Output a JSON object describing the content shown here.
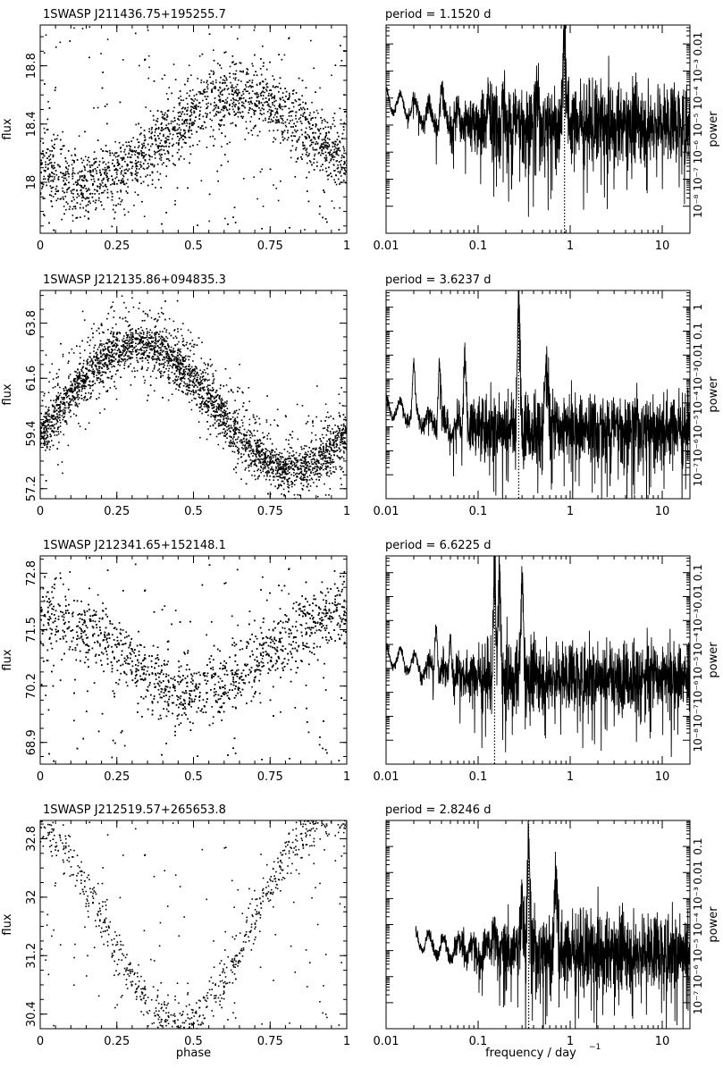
{
  "chart_data": [
    {
      "type": "scatter",
      "title": "1SWASP J211436.75+195255.7",
      "xlabel": "",
      "ylabel": "flux",
      "xlim": [
        0,
        1
      ],
      "ylim": [
        17.65,
        19.08
      ],
      "x_ticks": [
        "0",
        "0.25",
        "0.5",
        "0.75",
        "1"
      ],
      "y_ticks": [
        "18",
        "18.4",
        "18.8"
      ],
      "y_tick_values": [
        18.0,
        18.4,
        18.8
      ],
      "grid": false,
      "light_curve": {
        "n_points": 3200,
        "mean_flux": 18.3,
        "amplitude": 0.3,
        "minimum_phase": 0.15,
        "scatter": 0.16,
        "profile": "smooth rise from minimum near phase 0.15 to maximum near phase 0.65"
      }
    },
    {
      "type": "line",
      "title": "period =    1.1520  d",
      "xlabel": "",
      "ylabel": "power",
      "xscale": "log",
      "yscale": "log",
      "xlim": [
        0.01,
        20
      ],
      "ylim": [
        1e-09,
        0.05
      ],
      "x_ticks": [
        "0.01",
        "0.1",
        "1",
        "10"
      ],
      "y_ticks": [
        "10⁻⁸",
        "10⁻⁷",
        "10⁻⁶",
        "10⁻⁵",
        "10⁻⁴",
        "10⁻³",
        "0.01"
      ],
      "y_tick_values": [
        1e-08,
        1e-07,
        1e-06,
        1e-05,
        0.0001,
        0.001,
        0.01
      ],
      "period_marker_frequency": 0.868,
      "spectrum": {
        "f_start": 0.01,
        "base_level_log10": -4.9,
        "peaks": [
          {
            "frequency": 0.868,
            "log10_power": -1.5
          },
          {
            "frequency": 0.04,
            "log10_power": -3.8
          },
          {
            "frequency": 0.13,
            "log10_power": -3.9
          },
          {
            "frequency": 0.19,
            "log10_power": -4.0
          },
          {
            "frequency": 0.43,
            "log10_power": -4.0
          }
        ]
      }
    },
    {
      "type": "scatter",
      "title": "1SWASP J212135.86+094835.3",
      "xlabel": "",
      "ylabel": "flux",
      "xlim": [
        0,
        1
      ],
      "ylim": [
        56.8,
        65.1
      ],
      "x_ticks": [
        "0",
        "0.25",
        "0.5",
        "0.75",
        "1"
      ],
      "y_ticks": [
        "57.2",
        "59.4",
        "61.6",
        "63.8"
      ],
      "y_tick_values": [
        57.2,
        59.4,
        61.6,
        63.8
      ],
      "grid": false,
      "light_curve": {
        "n_points": 3800,
        "mean_flux": 60.6,
        "amplitude": 3.3,
        "minimum_phase": 0.82,
        "scatter": 0.7,
        "profile": "maximum near phase 0.33, steep decline to minimum near phase 0.82"
      }
    },
    {
      "type": "line",
      "title": "period =    3.6237  d",
      "xlabel": "",
      "ylabel": "power",
      "xscale": "log",
      "yscale": "log",
      "xlim": [
        0.01,
        20
      ],
      "ylim": [
        1e-08,
        5
      ],
      "x_ticks": [
        "0.01",
        "0.1",
        "1",
        "10"
      ],
      "y_ticks": [
        "10⁻⁷",
        "10⁻⁶",
        "10⁻⁵",
        "10⁻⁴",
        "10⁻³",
        "0.01",
        "0.1",
        "1"
      ],
      "y_tick_values": [
        1e-07,
        1e-06,
        1e-05,
        0.0001,
        0.001,
        0.01,
        0.1,
        1
      ],
      "period_marker_frequency": 0.276,
      "spectrum": {
        "f_start": 0.01,
        "base_level_log10": -5.0,
        "peaks": [
          {
            "frequency": 0.276,
            "log10_power": 0.4
          },
          {
            "frequency": 0.02,
            "log10_power": -2.7
          },
          {
            "frequency": 0.038,
            "log10_power": -2.2
          },
          {
            "frequency": 0.072,
            "log10_power": -2.0
          },
          {
            "frequency": 0.55,
            "log10_power": -2.2
          }
        ]
      }
    },
    {
      "type": "scatter",
      "title": "1SWASP J212341.65+152148.1",
      "xlabel": "",
      "ylabel": "flux",
      "xlim": [
        0,
        1
      ],
      "ylim": [
        68.4,
        73.2
      ],
      "x_ticks": [
        "0",
        "0.25",
        "0.5",
        "0.75",
        "1"
      ],
      "y_ticks": [
        "68.9",
        "70.2",
        "71.5",
        "72.8"
      ],
      "y_tick_values": [
        68.9,
        70.2,
        71.5,
        72.8
      ],
      "grid": false,
      "light_curve": {
        "n_points": 3400,
        "mean_flux": 71.0,
        "amplitude": 0.9,
        "minimum_phase": 0.5,
        "scatter": 0.55,
        "profile": "broad minimum near phase 0.5, vertical streaks from individual nights"
      }
    },
    {
      "type": "line",
      "title": "period =    6.6225  d",
      "xlabel": "",
      "ylabel": "power",
      "xscale": "log",
      "yscale": "log",
      "xlim": [
        0.01,
        20
      ],
      "ylim": [
        1e-09,
        0.5
      ],
      "x_ticks": [
        "0.01",
        "0.1",
        "1",
        "10"
      ],
      "y_ticks": [
        "10⁻⁸",
        "10⁻⁷",
        "10⁻⁶",
        "10⁻⁵",
        "10⁻⁴",
        "10⁻³",
        "0.01",
        "0.1"
      ],
      "y_tick_values": [
        1e-08,
        1e-07,
        1e-06,
        1e-05,
        0.0001,
        0.001,
        0.01,
        0.1
      ],
      "period_marker_frequency": 0.151,
      "spectrum": {
        "f_start": 0.01,
        "base_level_log10": -5.3,
        "peaks": [
          {
            "frequency": 0.151,
            "log10_power": -0.9
          },
          {
            "frequency": 0.17,
            "log10_power": -1.1
          },
          {
            "frequency": 0.3,
            "log10_power": -1.5
          },
          {
            "frequency": 0.035,
            "log10_power": -3.0
          },
          {
            "frequency": 0.05,
            "log10_power": -3.4
          }
        ]
      }
    },
    {
      "type": "scatter",
      "title": "1SWASP J212519.57+265653.8",
      "xlabel": "phase",
      "ylabel": "flux",
      "xlim": [
        0,
        1
      ],
      "ylim": [
        30.2,
        33.05
      ],
      "x_ticks": [
        "0",
        "0.25",
        "0.5",
        "0.75",
        "1"
      ],
      "y_ticks": [
        "30.4",
        "31.2",
        "32",
        "32.8"
      ],
      "y_tick_values": [
        30.4,
        31.2,
        32.0,
        32.8
      ],
      "grid": false,
      "light_curve": {
        "n_points": 900,
        "mean_flux": 31.7,
        "amplitude": 1.4,
        "minimum_phase": 0.45,
        "scatter": 0.22,
        "profile": "deep U-shaped dip centred near phase 0.45"
      }
    },
    {
      "type": "line",
      "title": "period =    2.8246  d",
      "xlabel": "frequency  /  day",
      "xlabel_superscript": "−1",
      "ylabel": "power",
      "xscale": "log",
      "yscale": "log",
      "xlim": [
        0.01,
        20
      ],
      "ylim": [
        1e-08,
        1
      ],
      "x_ticks": [
        "0.01",
        "0.1",
        "1",
        "10"
      ],
      "y_ticks": [
        "10⁻⁷",
        "10⁻⁶",
        "10⁻⁵",
        "10⁻⁴",
        "10⁻³",
        "0.01",
        "0.1"
      ],
      "y_tick_values": [
        1e-07,
        1e-06,
        1e-05,
        0.0001,
        0.001,
        0.01,
        0.1
      ],
      "period_marker_frequency": 0.354,
      "spectrum": {
        "f_start": 0.021,
        "base_level_log10": -5.0,
        "peaks": [
          {
            "frequency": 0.354,
            "log10_power": -0.8
          },
          {
            "frequency": 0.7,
            "log10_power": -2.0
          },
          {
            "frequency": 0.3,
            "log10_power": -2.5
          },
          {
            "frequency": 0.07,
            "log10_power": -4.2
          },
          {
            "frequency": 0.15,
            "log10_power": -4.0
          }
        ]
      }
    }
  ]
}
